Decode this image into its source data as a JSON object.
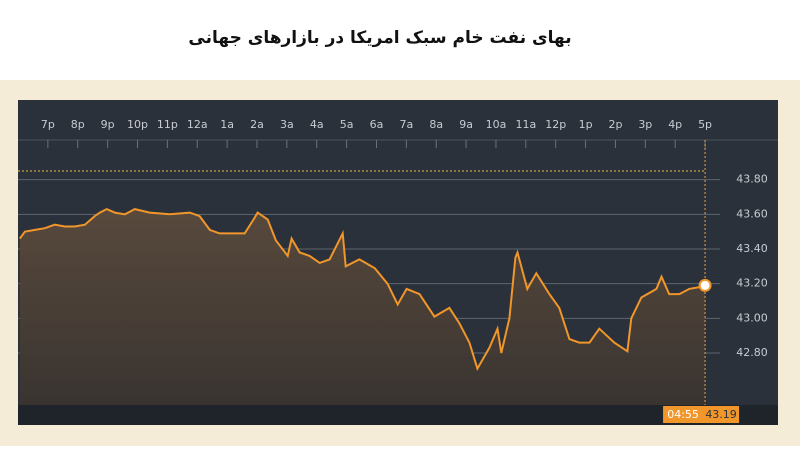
{
  "chart_data": {
    "type": "line",
    "title": "بهای نفت خام سبک امریکا در بازارهای جهانی",
    "series": [
      {
        "name": null,
        "color": "#f0962a",
        "x": [
          -0.94,
          -0.77,
          -0.43,
          -0.1,
          0.23,
          0.57,
          0.9,
          1.24,
          1.57,
          1.74,
          1.97,
          2.24,
          2.58,
          2.91,
          3.41,
          4.08,
          4.75,
          5.08,
          5.42,
          5.75,
          6.09,
          6.59,
          6.92,
          7.02,
          7.36,
          7.63,
          8.03,
          8.16,
          8.43,
          8.76,
          9.1,
          9.43,
          9.87,
          9.97,
          10.43,
          10.94,
          11.37,
          11.71,
          12.01,
          12.44,
          12.94,
          13.44,
          13.78,
          14.11,
          14.38,
          14.78,
          15.05,
          15.18,
          15.45,
          15.65,
          15.72,
          16.05,
          16.35,
          16.79,
          17.12,
          17.46,
          17.79,
          18.13,
          18.46,
          18.96,
          19.4,
          19.53,
          19.87,
          20.37,
          20.54,
          20.8,
          21.14,
          21.47,
          21.81,
          22
        ],
        "values": [
          43.46,
          43.5,
          43.51,
          43.52,
          43.54,
          43.53,
          43.53,
          43.54,
          43.59,
          43.61,
          43.63,
          43.61,
          43.6,
          43.63,
          43.61,
          43.6,
          43.61,
          43.59,
          43.51,
          43.49,
          43.49,
          43.49,
          43.58,
          43.61,
          43.57,
          43.45,
          43.36,
          43.46,
          43.38,
          43.36,
          43.32,
          43.34,
          43.49,
          43.3,
          43.34,
          43.29,
          43.2,
          43.08,
          43.17,
          43.14,
          43.01,
          43.06,
          42.97,
          42.86,
          42.71,
          42.83,
          42.94,
          42.8,
          43.0,
          43.35,
          43.38,
          43.17,
          43.26,
          43.14,
          43.06,
          42.88,
          42.86,
          42.86,
          42.94,
          42.86,
          42.81,
          43.0,
          43.12,
          43.17,
          43.24,
          43.14,
          43.14,
          43.17,
          43.18,
          43.19
        ]
      }
    ],
    "ref_line": 43.85,
    "last_time": "04:55",
    "xlim": [
      -1,
      22.5
    ],
    "xticks": [
      {
        "value": 0,
        "label": "7p"
      },
      {
        "value": 1,
        "label": "8p"
      },
      {
        "value": 2,
        "label": "9p"
      },
      {
        "value": 3,
        "label": "10p"
      },
      {
        "value": 4,
        "label": "11p"
      },
      {
        "value": 5,
        "label": "12a"
      },
      {
        "value": 6,
        "label": "1a"
      },
      {
        "value": 7,
        "label": "2a"
      },
      {
        "value": 8,
        "label": "3a"
      },
      {
        "value": 9,
        "label": "4a"
      },
      {
        "value": 10,
        "label": "5a"
      },
      {
        "value": 11,
        "label": "6a"
      },
      {
        "value": 12,
        "label": "7a"
      },
      {
        "value": 13,
        "label": "8a"
      },
      {
        "value": 14,
        "label": "9a"
      },
      {
        "value": 15,
        "label": "10a"
      },
      {
        "value": 16,
        "label": "11a"
      },
      {
        "value": 17,
        "label": "12p"
      },
      {
        "value": 18,
        "label": "1p"
      },
      {
        "value": 19,
        "label": "2p"
      },
      {
        "value": 20,
        "label": "3p"
      },
      {
        "value": 21,
        "label": "4p"
      },
      {
        "value": 22,
        "label": "5p"
      }
    ],
    "ylim": [
      42.5,
      44.0
    ],
    "yticks": [
      {
        "value": 42.8,
        "label": "42.80"
      },
      {
        "value": 43.0,
        "label": "43.00"
      },
      {
        "value": 43.2,
        "label": "43.20"
      },
      {
        "value": 43.4,
        "label": "43.40"
      },
      {
        "value": 43.6,
        "label": "43.60"
      },
      {
        "value": 43.8,
        "label": "43.80"
      }
    ],
    "grid": true
  }
}
